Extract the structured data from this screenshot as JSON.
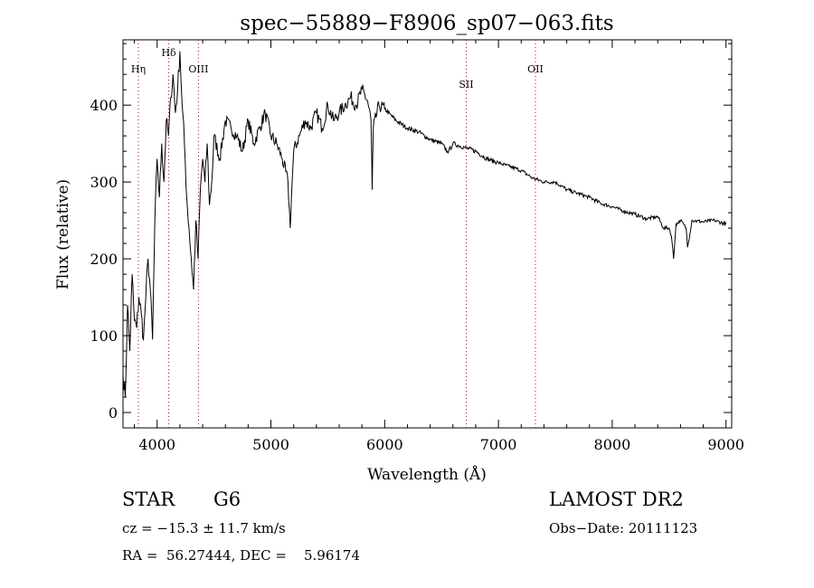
{
  "chart_data": {
    "type": "line",
    "title": "spec−55889−F8906_sp07−063.fits",
    "xlabel": "Wavelength (Å)",
    "ylabel": "Flux (relative)",
    "xlim": [
      3700,
      9050
    ],
    "ylim": [
      -20,
      485
    ],
    "x_ticks": [
      4000,
      5000,
      6000,
      7000,
      8000,
      9000
    ],
    "x_tick_labels": [
      "4000",
      "5000",
      "6000",
      "7000",
      "8000",
      "9000"
    ],
    "y_ticks": [
      0,
      100,
      200,
      300,
      400
    ],
    "y_tick_labels": [
      "0",
      "100",
      "200",
      "300",
      "400"
    ],
    "grid": false,
    "line_color": "#000000",
    "marker_color": "#cc0000",
    "series": [
      {
        "x": [
          3700,
          3720,
          3740,
          3760,
          3780,
          3800,
          3820,
          3840,
          3860,
          3880,
          3900,
          3920,
          3940,
          3960,
          3980,
          4000,
          4020,
          4040,
          4060,
          4080,
          4100,
          4120,
          4140,
          4160,
          4180,
          4200,
          4220,
          4240,
          4260,
          4280,
          4300,
          4320,
          4340,
          4360,
          4380,
          4400,
          4420,
          4440,
          4460,
          4480,
          4500,
          4550,
          4600,
          4650,
          4700,
          4750,
          4800,
          4850,
          4900,
          4950,
          5000,
          5050,
          5100,
          5150,
          5170,
          5180,
          5200,
          5250,
          5300,
          5350,
          5400,
          5450,
          5500,
          5550,
          5600,
          5650,
          5700,
          5750,
          5800,
          5850,
          5880,
          5890,
          5900,
          5950,
          6000,
          6100,
          6200,
          6300,
          6400,
          6500,
          6550,
          6563,
          6600,
          6700,
          6800,
          6900,
          7000,
          7100,
          7200,
          7300,
          7400,
          7500,
          7600,
          7700,
          7800,
          7900,
          8000,
          8100,
          8200,
          8300,
          8400,
          8450,
          8500,
          8520,
          8540,
          8560,
          8600,
          8650,
          8662,
          8700,
          8800,
          8900,
          9000
        ],
        "y": [
          50,
          20,
          140,
          80,
          180,
          120,
          110,
          150,
          130,
          95,
          150,
          200,
          160,
          95,
          250,
          330,
          280,
          350,
          300,
          380,
          360,
          410,
          440,
          390,
          420,
          470,
          400,
          350,
          280,
          240,
          200,
          160,
          250,
          200,
          290,
          330,
          300,
          350,
          270,
          300,
          360,
          330,
          380,
          370,
          360,
          340,
          380,
          350,
          370,
          390,
          360,
          350,
          330,
          300,
          240,
          280,
          340,
          360,
          380,
          370,
          390,
          370,
          400,
          380,
          390,
          400,
          410,
          400,
          420,
          405,
          380,
          290,
          370,
          400,
          395,
          380,
          370,
          365,
          355,
          350,
          340,
          340,
          350,
          345,
          340,
          330,
          325,
          320,
          315,
          305,
          300,
          300,
          290,
          285,
          280,
          272,
          268,
          262,
          258,
          252,
          255,
          240,
          240,
          230,
          200,
          245,
          250,
          240,
          215,
          250,
          248,
          250,
          245
        ]
      }
    ],
    "annotations": [
      {
        "label": "Hη",
        "x": 3835
      },
      {
        "label": "Hδ",
        "x": 4102
      },
      {
        "label": "OIII",
        "x": 4363
      },
      {
        "label": "SII",
        "x": 6717
      },
      {
        "label": "OII",
        "x": 7325
      }
    ]
  },
  "info": {
    "object_class": "STAR",
    "subclass": "G6",
    "survey": "LAMOST DR2",
    "cz": "cz = −15.3 ± 11.7 km/s",
    "obs_date": "Obs−Date: 20111123",
    "radec": "RA =  56.27444, DEC =    5.96174"
  }
}
